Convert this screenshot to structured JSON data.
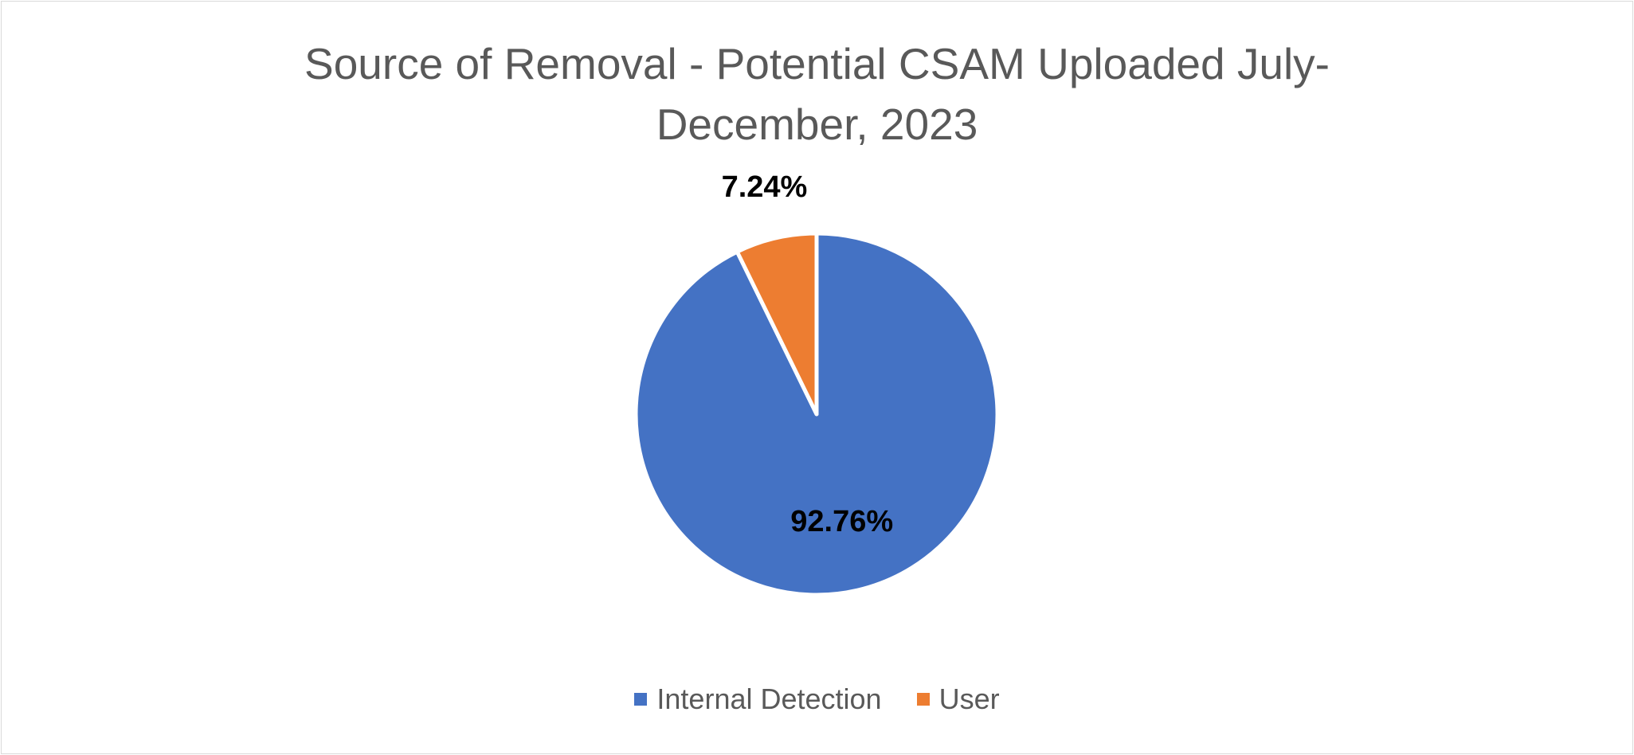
{
  "chart_data": {
    "type": "pie",
    "title_lines": [
      "Source of Removal - Potential CSAM Uploaded July-",
      "December, 2023"
    ],
    "categories": [
      "Internal Detection",
      "User"
    ],
    "values": [
      92.76,
      7.24
    ],
    "data_labels": [
      "92.76%",
      "7.24%"
    ],
    "colors": [
      "#4472C4",
      "#ED7D31"
    ],
    "legend_position": "bottom",
    "start_angle": "12 o'clock",
    "direction": "clockwise"
  }
}
